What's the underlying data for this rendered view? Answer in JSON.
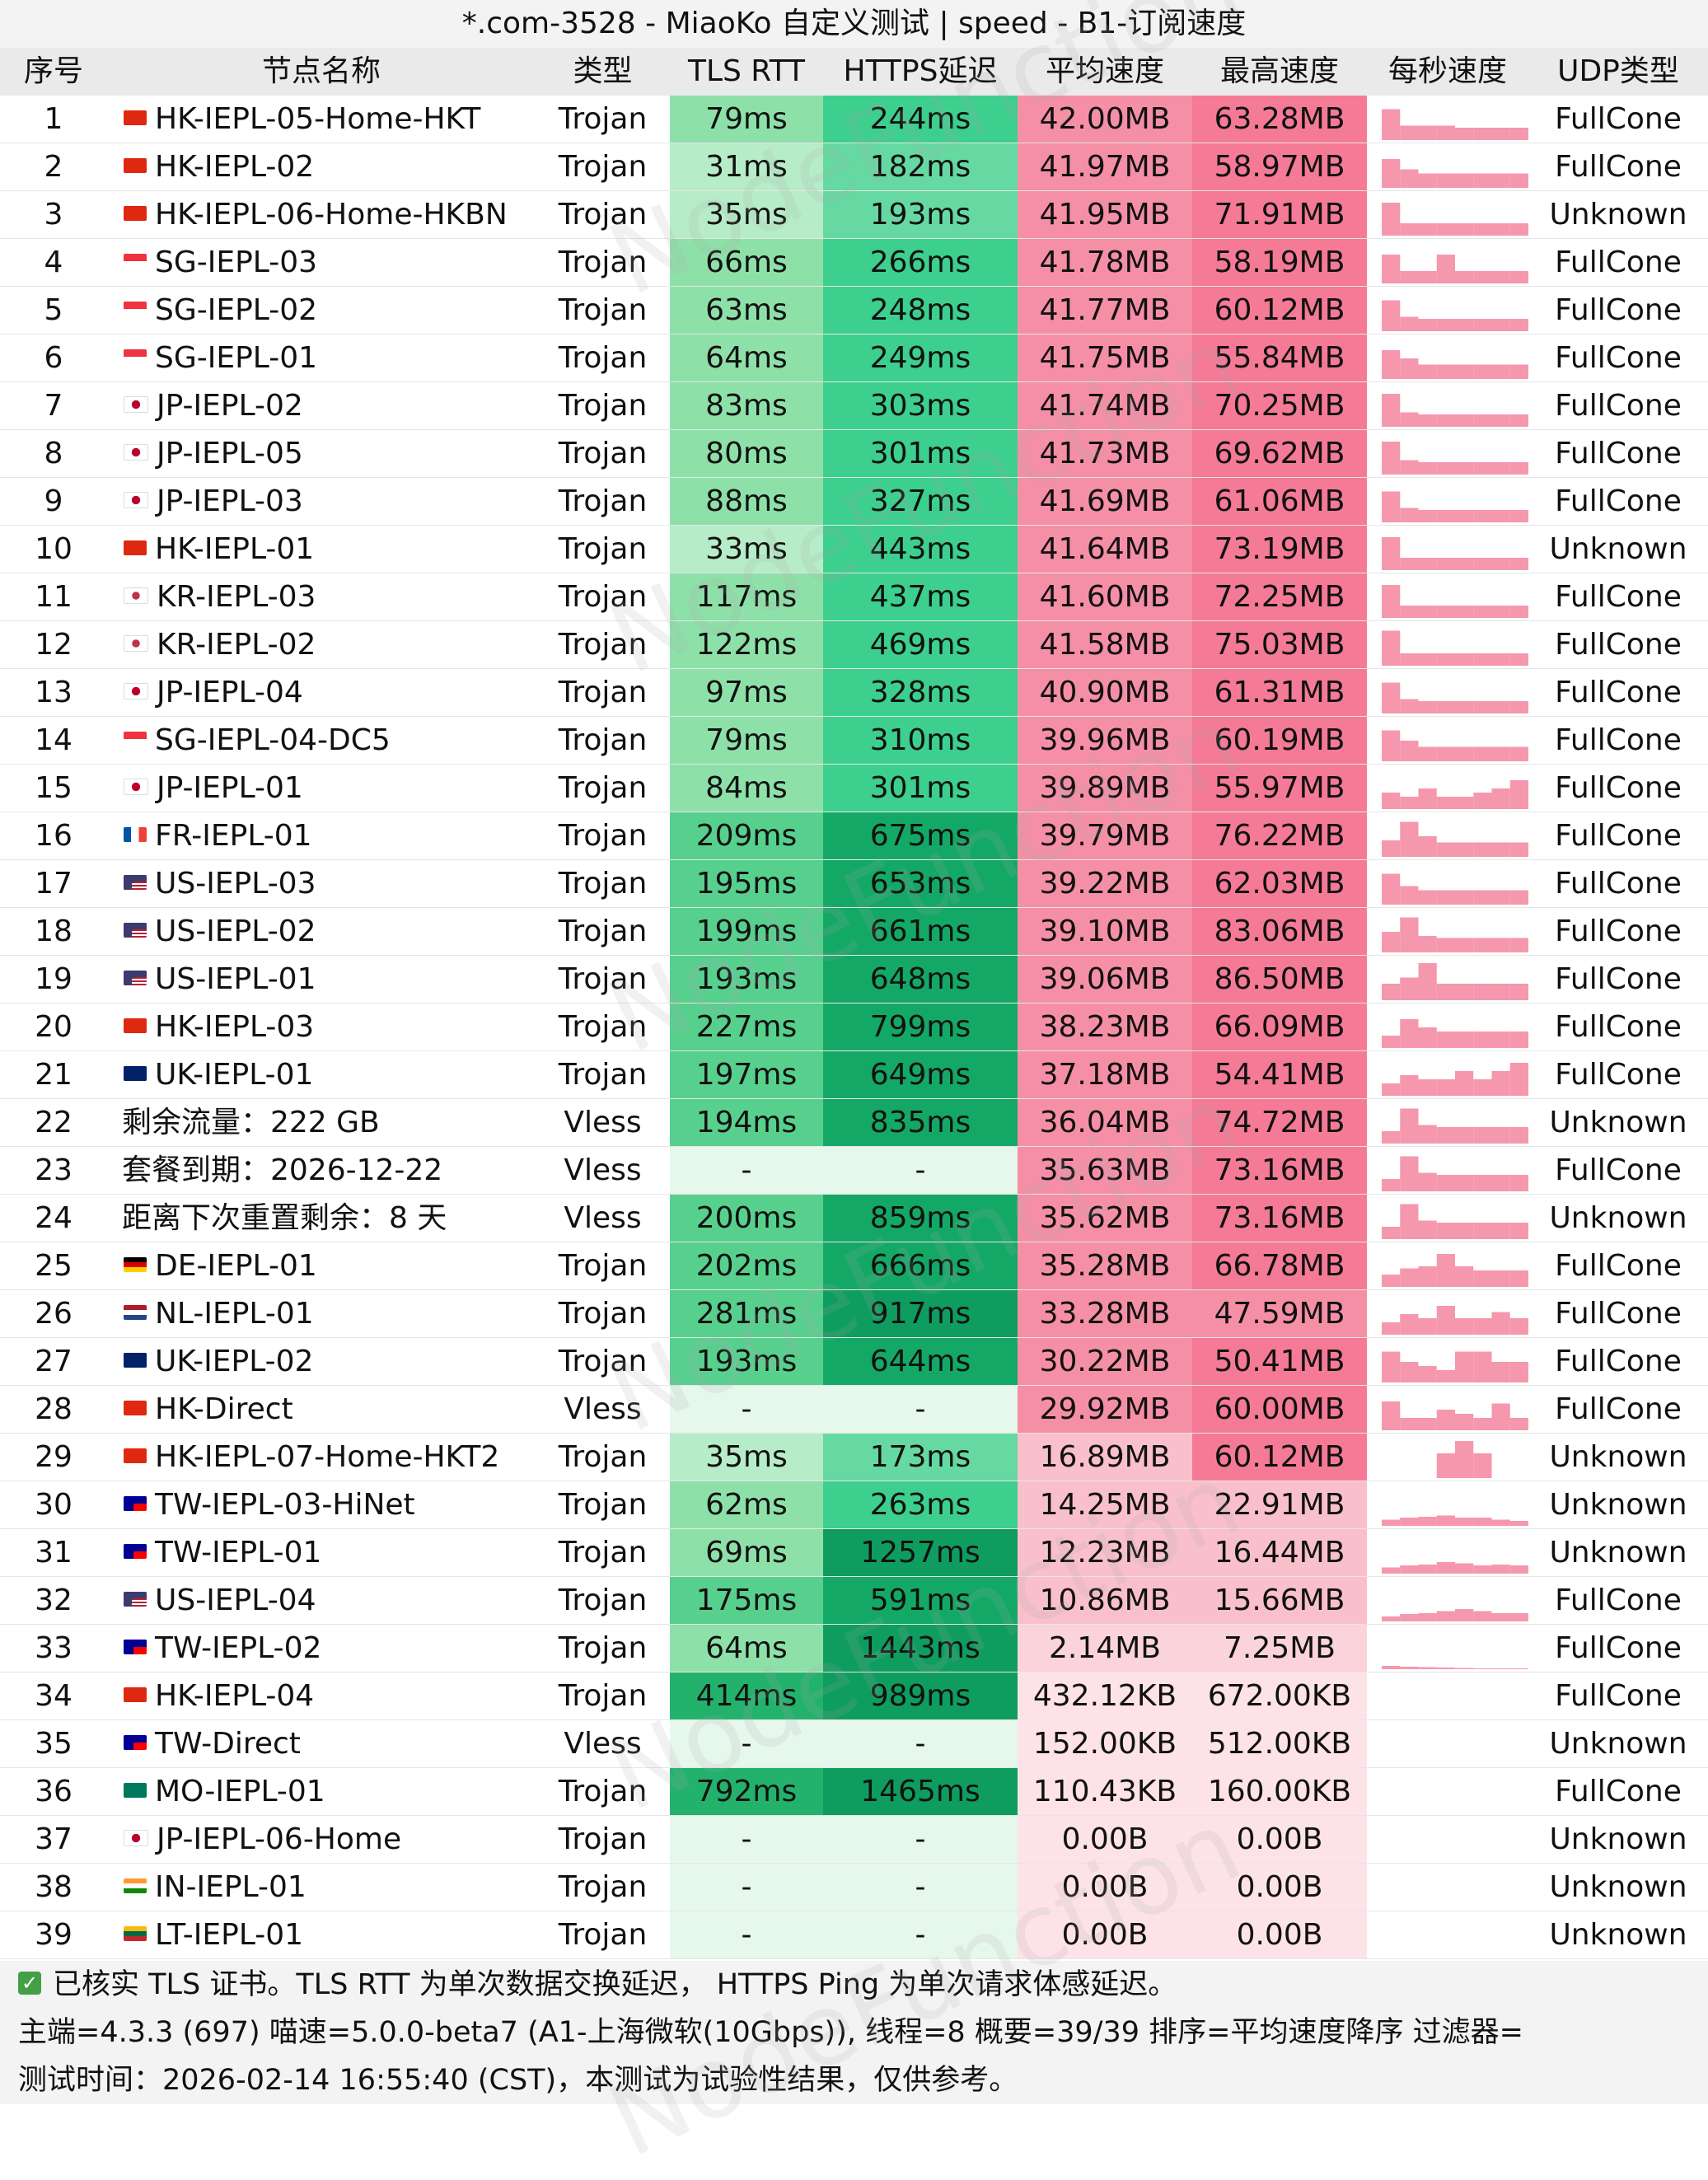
{
  "title": "*.com-3528 - MiaoKo 自定义测试 | speed - B1-订阅速度",
  "headers": [
    "序号",
    "节点名称",
    "类型",
    "TLS RTT",
    "HTTPS延迟",
    "平均速度",
    "最高速度",
    "每秒速度",
    "UDP类型"
  ],
  "watermark": "NodeFunction",
  "rows": [
    {
      "no": "1",
      "flag": "hk",
      "name": "HK-IEPL-05-Home-HKT",
      "type": "Trojan",
      "tls": "79ms",
      "https": "244ms",
      "avg": "42.00MB",
      "max": "63.28MB",
      "udp": "FullCone",
      "spark": [
        0.75,
        0.35,
        0.35,
        0.35,
        0.3,
        0.3,
        0.3,
        0.3
      ]
    },
    {
      "no": "2",
      "flag": "hk",
      "name": "HK-IEPL-02",
      "type": "Trojan",
      "tls": "31ms",
      "https": "182ms",
      "avg": "41.97MB",
      "max": "58.97MB",
      "udp": "FullCone",
      "spark": [
        0.7,
        0.45,
        0.35,
        0.35,
        0.35,
        0.35,
        0.35,
        0.35
      ]
    },
    {
      "no": "3",
      "flag": "hk",
      "name": "HK-IEPL-06-Home-HKBN",
      "type": "Trojan",
      "tls": "35ms",
      "https": "193ms",
      "avg": "41.95MB",
      "max": "71.91MB",
      "udp": "Unknown",
      "spark": [
        0.8,
        0.3,
        0.3,
        0.3,
        0.3,
        0.3,
        0.3,
        0.3
      ]
    },
    {
      "no": "4",
      "flag": "sg",
      "name": "SG-IEPL-03",
      "type": "Trojan",
      "tls": "66ms",
      "https": "266ms",
      "avg": "41.78MB",
      "max": "58.19MB",
      "udp": "FullCone",
      "spark": [
        0.7,
        0.3,
        0.3,
        0.7,
        0.3,
        0.3,
        0.3,
        0.3
      ]
    },
    {
      "no": "5",
      "flag": "sg",
      "name": "SG-IEPL-02",
      "type": "Trojan",
      "tls": "63ms",
      "https": "248ms",
      "avg": "41.77MB",
      "max": "60.12MB",
      "udp": "FullCone",
      "spark": [
        0.75,
        0.35,
        0.3,
        0.3,
        0.3,
        0.3,
        0.3,
        0.3
      ]
    },
    {
      "no": "6",
      "flag": "sg",
      "name": "SG-IEPL-01",
      "type": "Trojan",
      "tls": "64ms",
      "https": "249ms",
      "avg": "41.75MB",
      "max": "55.84MB",
      "udp": "FullCone",
      "spark": [
        0.7,
        0.5,
        0.35,
        0.35,
        0.35,
        0.35,
        0.35,
        0.35
      ]
    },
    {
      "no": "7",
      "flag": "jp",
      "name": "JP-IEPL-02",
      "type": "Trojan",
      "tls": "83ms",
      "https": "303ms",
      "avg": "41.74MB",
      "max": "70.25MB",
      "udp": "FullCone",
      "spark": [
        0.8,
        0.35,
        0.3,
        0.3,
        0.3,
        0.3,
        0.3,
        0.3
      ]
    },
    {
      "no": "8",
      "flag": "jp",
      "name": "JP-IEPL-05",
      "type": "Trojan",
      "tls": "80ms",
      "https": "301ms",
      "avg": "41.73MB",
      "max": "69.62MB",
      "udp": "FullCone",
      "spark": [
        0.8,
        0.35,
        0.3,
        0.3,
        0.3,
        0.3,
        0.3,
        0.3
      ]
    },
    {
      "no": "9",
      "flag": "jp",
      "name": "JP-IEPL-03",
      "type": "Trojan",
      "tls": "88ms",
      "https": "327ms",
      "avg": "41.69MB",
      "max": "61.06MB",
      "udp": "FullCone",
      "spark": [
        0.75,
        0.35,
        0.3,
        0.3,
        0.3,
        0.3,
        0.3,
        0.3
      ]
    },
    {
      "no": "10",
      "flag": "hk",
      "name": "HK-IEPL-01",
      "type": "Trojan",
      "tls": "33ms",
      "https": "443ms",
      "avg": "41.64MB",
      "max": "73.19MB",
      "udp": "Unknown",
      "spark": [
        0.8,
        0.3,
        0.3,
        0.3,
        0.3,
        0.3,
        0.3,
        0.3
      ]
    },
    {
      "no": "11",
      "flag": "kr",
      "name": "KR-IEPL-03",
      "type": "Trojan",
      "tls": "117ms",
      "https": "437ms",
      "avg": "41.60MB",
      "max": "72.25MB",
      "udp": "FullCone",
      "spark": [
        0.8,
        0.3,
        0.3,
        0.3,
        0.3,
        0.3,
        0.3,
        0.3
      ]
    },
    {
      "no": "12",
      "flag": "kr",
      "name": "KR-IEPL-02",
      "type": "Trojan",
      "tls": "122ms",
      "https": "469ms",
      "avg": "41.58MB",
      "max": "75.03MB",
      "udp": "FullCone",
      "spark": [
        0.85,
        0.3,
        0.3,
        0.3,
        0.3,
        0.3,
        0.3,
        0.3
      ]
    },
    {
      "no": "13",
      "flag": "jp",
      "name": "JP-IEPL-04",
      "type": "Trojan",
      "tls": "97ms",
      "https": "328ms",
      "avg": "40.90MB",
      "max": "61.31MB",
      "udp": "FullCone",
      "spark": [
        0.75,
        0.35,
        0.3,
        0.3,
        0.3,
        0.3,
        0.3,
        0.3
      ]
    },
    {
      "no": "14",
      "flag": "sg",
      "name": "SG-IEPL-04-DC5",
      "type": "Trojan",
      "tls": "79ms",
      "https": "310ms",
      "avg": "39.96MB",
      "max": "60.19MB",
      "udp": "FullCone",
      "spark": [
        0.75,
        0.5,
        0.35,
        0.35,
        0.35,
        0.35,
        0.35,
        0.35
      ]
    },
    {
      "no": "15",
      "flag": "jp",
      "name": "JP-IEPL-01",
      "type": "Trojan",
      "tls": "84ms",
      "https": "301ms",
      "avg": "39.89MB",
      "max": "55.97MB",
      "udp": "FullCone",
      "spark": [
        0.4,
        0.3,
        0.5,
        0.3,
        0.3,
        0.4,
        0.5,
        0.7
      ]
    },
    {
      "no": "16",
      "flag": "fr",
      "name": "FR-IEPL-01",
      "type": "Trojan",
      "tls": "209ms",
      "https": "675ms",
      "avg": "39.79MB",
      "max": "76.22MB",
      "udp": "FullCone",
      "spark": [
        0.4,
        0.85,
        0.5,
        0.35,
        0.35,
        0.35,
        0.35,
        0.35
      ]
    },
    {
      "no": "17",
      "flag": "us",
      "name": "US-IEPL-03",
      "type": "Trojan",
      "tls": "195ms",
      "https": "653ms",
      "avg": "39.22MB",
      "max": "62.03MB",
      "udp": "FullCone",
      "spark": [
        0.75,
        0.45,
        0.35,
        0.35,
        0.35,
        0.35,
        0.35,
        0.35
      ]
    },
    {
      "no": "18",
      "flag": "us",
      "name": "US-IEPL-02",
      "type": "Trojan",
      "tls": "199ms",
      "https": "661ms",
      "avg": "39.10MB",
      "max": "83.06MB",
      "udp": "FullCone",
      "spark": [
        0.5,
        0.85,
        0.4,
        0.35,
        0.35,
        0.35,
        0.35,
        0.35
      ]
    },
    {
      "no": "19",
      "flag": "us",
      "name": "US-IEPL-01",
      "type": "Trojan",
      "tls": "193ms",
      "https": "648ms",
      "avg": "39.06MB",
      "max": "86.50MB",
      "udp": "FullCone",
      "spark": [
        0.4,
        0.55,
        0.9,
        0.4,
        0.4,
        0.4,
        0.4,
        0.4
      ]
    },
    {
      "no": "20",
      "flag": "hk",
      "name": "HK-IEPL-03",
      "type": "Trojan",
      "tls": "227ms",
      "https": "799ms",
      "avg": "38.23MB",
      "max": "66.09MB",
      "udp": "FullCone",
      "spark": [
        0.3,
        0.7,
        0.5,
        0.4,
        0.4,
        0.4,
        0.4,
        0.4
      ]
    },
    {
      "no": "21",
      "flag": "uk",
      "name": "UK-IEPL-01",
      "type": "Trojan",
      "tls": "197ms",
      "https": "649ms",
      "avg": "37.18MB",
      "max": "54.41MB",
      "udp": "FullCone",
      "spark": [
        0.3,
        0.5,
        0.4,
        0.4,
        0.6,
        0.4,
        0.6,
        0.8
      ]
    },
    {
      "no": "22",
      "flag": "",
      "name": "剩余流量：222 GB",
      "type": "Vless",
      "tls": "194ms",
      "https": "835ms",
      "avg": "36.04MB",
      "max": "74.72MB",
      "udp": "Unknown",
      "spark": [
        0.3,
        0.85,
        0.45,
        0.4,
        0.4,
        0.4,
        0.4,
        0.4
      ]
    },
    {
      "no": "23",
      "flag": "",
      "name": "套餐到期：2026-12-22",
      "type": "Vless",
      "tls": "-",
      "https": "-",
      "avg": "35.63MB",
      "max": "73.16MB",
      "udp": "FullCone",
      "spark": [
        0.3,
        0.85,
        0.45,
        0.4,
        0.4,
        0.4,
        0.4,
        0.4
      ]
    },
    {
      "no": "24",
      "flag": "",
      "name": "距离下次重置剩余：8 天",
      "type": "Vless",
      "tls": "200ms",
      "https": "859ms",
      "avg": "35.62MB",
      "max": "73.16MB",
      "udp": "Unknown",
      "spark": [
        0.3,
        0.85,
        0.45,
        0.4,
        0.4,
        0.4,
        0.4,
        0.4
      ]
    },
    {
      "no": "25",
      "flag": "de",
      "name": "DE-IEPL-01",
      "type": "Trojan",
      "tls": "202ms",
      "https": "666ms",
      "avg": "35.28MB",
      "max": "66.78MB",
      "udp": "FullCone",
      "spark": [
        0.3,
        0.45,
        0.5,
        0.8,
        0.5,
        0.4,
        0.4,
        0.4
      ]
    },
    {
      "no": "26",
      "flag": "nl",
      "name": "NL-IEPL-01",
      "type": "Trojan",
      "tls": "281ms",
      "https": "917ms",
      "avg": "33.28MB",
      "max": "47.59MB",
      "udp": "FullCone",
      "spark": [
        0.3,
        0.5,
        0.4,
        0.7,
        0.4,
        0.4,
        0.55,
        0.4
      ]
    },
    {
      "no": "27",
      "flag": "uk",
      "name": "UK-IEPL-02",
      "type": "Trojan",
      "tls": "193ms",
      "https": "644ms",
      "avg": "30.22MB",
      "max": "50.41MB",
      "udp": "FullCone",
      "spark": [
        0.75,
        0.5,
        0.4,
        0.3,
        0.75,
        0.75,
        0.5,
        0.5
      ]
    },
    {
      "no": "28",
      "flag": "hk",
      "name": "HK-Direct",
      "type": "Vless",
      "tls": "-",
      "https": "-",
      "avg": "29.92MB",
      "max": "60.00MB",
      "udp": "FullCone",
      "spark": [
        0.7,
        0.3,
        0.3,
        0.5,
        0.4,
        0.3,
        0.65,
        0.3
      ]
    },
    {
      "no": "29",
      "flag": "hk",
      "name": "HK-IEPL-07-Home-HKT2",
      "type": "Trojan",
      "tls": "35ms",
      "https": "173ms",
      "avg": "16.89MB",
      "max": "60.12MB",
      "udp": "Unknown",
      "spark": [
        0,
        0,
        0,
        0.6,
        0.9,
        0.6,
        0,
        0
      ]
    },
    {
      "no": "30",
      "flag": "tw",
      "name": "TW-IEPL-03-HiNet",
      "type": "Trojan",
      "tls": "62ms",
      "https": "263ms",
      "avg": "14.25MB",
      "max": "22.91MB",
      "udp": "Unknown",
      "spark": [
        0.15,
        0.2,
        0.22,
        0.25,
        0.2,
        0.2,
        0.15,
        0.12
      ]
    },
    {
      "no": "31",
      "flag": "tw",
      "name": "TW-IEPL-01",
      "type": "Trojan",
      "tls": "69ms",
      "https": "1257ms",
      "avg": "12.23MB",
      "max": "16.44MB",
      "udp": "Unknown",
      "spark": [
        0.15,
        0.2,
        0.22,
        0.28,
        0.25,
        0.2,
        0.22,
        0.2
      ]
    },
    {
      "no": "32",
      "flag": "us",
      "name": "US-IEPL-04",
      "type": "Trojan",
      "tls": "175ms",
      "https": "591ms",
      "avg": "10.86MB",
      "max": "15.66MB",
      "udp": "FullCone",
      "spark": [
        0.12,
        0.18,
        0.2,
        0.25,
        0.3,
        0.25,
        0.2,
        0.2
      ]
    },
    {
      "no": "33",
      "flag": "tw",
      "name": "TW-IEPL-02",
      "type": "Trojan",
      "tls": "64ms",
      "https": "1443ms",
      "avg": "2.14MB",
      "max": "7.25MB",
      "udp": "FullCone",
      "spark": [
        0.08,
        0.06,
        0.05,
        0.04,
        0.03,
        0.02,
        0.02,
        0.02
      ]
    },
    {
      "no": "34",
      "flag": "hk",
      "name": "HK-IEPL-04",
      "type": "Trojan",
      "tls": "414ms",
      "https": "989ms",
      "avg": "432.12KB",
      "max": "672.00KB",
      "udp": "FullCone",
      "spark": [
        0,
        0,
        0,
        0,
        0,
        0,
        0,
        0
      ]
    },
    {
      "no": "35",
      "flag": "tw",
      "name": "TW-Direct",
      "type": "Vless",
      "tls": "-",
      "https": "-",
      "avg": "152.00KB",
      "max": "512.00KB",
      "udp": "Unknown",
      "spark": [
        0,
        0,
        0,
        0,
        0,
        0,
        0,
        0
      ]
    },
    {
      "no": "36",
      "flag": "mo",
      "name": "MO-IEPL-01",
      "type": "Trojan",
      "tls": "792ms",
      "https": "1465ms",
      "avg": "110.43KB",
      "max": "160.00KB",
      "udp": "FullCone",
      "spark": [
        0,
        0,
        0,
        0,
        0,
        0,
        0,
        0
      ]
    },
    {
      "no": "37",
      "flag": "jp",
      "name": "JP-IEPL-06-Home",
      "type": "Trojan",
      "tls": "-",
      "https": "-",
      "avg": "0.00B",
      "max": "0.00B",
      "udp": "Unknown",
      "spark": [
        0,
        0,
        0,
        0,
        0,
        0,
        0,
        0
      ]
    },
    {
      "no": "38",
      "flag": "in",
      "name": "IN-IEPL-01",
      "type": "Trojan",
      "tls": "-",
      "https": "-",
      "avg": "0.00B",
      "max": "0.00B",
      "udp": "Unknown",
      "spark": [
        0,
        0,
        0,
        0,
        0,
        0,
        0,
        0
      ]
    },
    {
      "no": "39",
      "flag": "lt",
      "name": "LT-IEPL-01",
      "type": "Trojan",
      "tls": "-",
      "https": "-",
      "avg": "0.00B",
      "max": "0.00B",
      "udp": "Unknown",
      "spark": [
        0,
        0,
        0,
        0,
        0,
        0,
        0,
        0
      ]
    }
  ],
  "footer": {
    "line1": "已核实 TLS 证书。TLS RTT 为单次数据交换延迟， HTTPS Ping 为单次请求体感延迟。",
    "line2": "主端=4.3.3 (697) 喵速=5.0.0-beta7 (A1-上海微软(10Gbps)), 线程=8 概要=39/39 排序=平均速度降序 过滤器=",
    "line3": "测试时间：2026-02-14 16:55:40 (CST)，本测试为试验性结果，仅供参考。"
  },
  "colors": {
    "tls_light": "#e6f7ec",
    "tls_mid": "#7fdca2",
    "tls_dark": "#34c27a",
    "https_light": "#e6f7ec",
    "https_mid": "#3ccf8e",
    "https_dark": "#0e9d5f",
    "speed_high": "#f4889f",
    "speed_mid": "#f7b5c3",
    "speed_low": "#fde3e8",
    "spark_bar": "#f598ad"
  }
}
